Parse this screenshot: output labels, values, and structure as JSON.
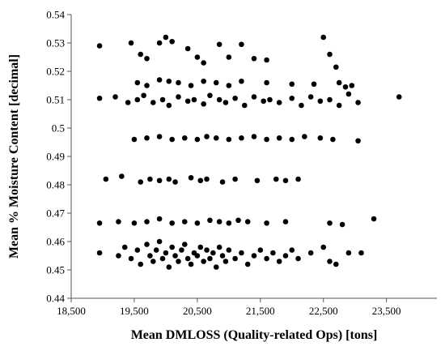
{
  "chart_data": {
    "type": "scatter",
    "xlabel": "Mean DMLOSS (Quality-related  Ops) [tons]",
    "ylabel": "Mean % Moisture Content [decimal]",
    "color": "#000000",
    "xlim": [
      18500,
      24300
    ],
    "ylim": [
      0.44,
      0.54
    ],
    "xticks": [
      {
        "value": 18500,
        "label": "18,500"
      },
      {
        "value": 19500,
        "label": "19,500"
      },
      {
        "value": 20500,
        "label": "20,500"
      },
      {
        "value": 21500,
        "label": "21,500"
      },
      {
        "value": 22500,
        "label": "22,500"
      },
      {
        "value": 23500,
        "label": "23,500"
      }
    ],
    "yticks": [
      0.44,
      0.45,
      0.46,
      0.47,
      0.48,
      0.49,
      0.5,
      0.51,
      0.52,
      0.53,
      0.54
    ],
    "x": [
      18950,
      19250,
      19350,
      19450,
      19550,
      19600,
      19700,
      19750,
      19800,
      19850,
      19900,
      19950,
      20000,
      20050,
      20100,
      20150,
      20200,
      20250,
      20300,
      20350,
      20400,
      20450,
      20500,
      20550,
      20600,
      20650,
      20700,
      20750,
      20800,
      20850,
      20900,
      20950,
      21000,
      21100,
      21200,
      21300,
      21400,
      21500,
      21600,
      21700,
      21800,
      21900,
      22000,
      22100,
      22300,
      22500,
      22600,
      22700,
      22900,
      23100,
      18950,
      19250,
      19500,
      19700,
      19900,
      20100,
      20300,
      20500,
      20700,
      20850,
      21000,
      21150,
      21300,
      21600,
      21900,
      22600,
      22800,
      23300,
      19050,
      19300,
      19600,
      19750,
      19900,
      20050,
      20150,
      20400,
      20550,
      20650,
      20900,
      21100,
      21450,
      21750,
      21900,
      22100,
      19500,
      19700,
      19900,
      20100,
      20300,
      20500,
      20650,
      20800,
      21000,
      21200,
      21400,
      21600,
      21800,
      22000,
      22200,
      22450,
      22650,
      23050,
      18950,
      19200,
      19400,
      19550,
      19650,
      19800,
      19950,
      20050,
      20200,
      20350,
      20450,
      20600,
      20700,
      20850,
      20950,
      21100,
      21250,
      21400,
      21550,
      21650,
      21800,
      22000,
      22150,
      22300,
      22450,
      22600,
      22750,
      22900,
      23050,
      23700,
      19550,
      19700,
      19900,
      20050,
      20200,
      20400,
      20600,
      20800,
      21000,
      21200,
      21600,
      22000,
      22350,
      22750,
      22850,
      22950,
      18950,
      19450,
      19600,
      19700,
      19900,
      20000,
      20100,
      20350,
      20500,
      20600,
      20850,
      21000,
      21200,
      21400,
      21600,
      22500,
      22600,
      22700
    ],
    "values": [
      0.456,
      0.455,
      0.458,
      0.454,
      0.457,
      0.452,
      0.459,
      0.455,
      0.453,
      0.457,
      0.46,
      0.454,
      0.456,
      0.451,
      0.458,
      0.455,
      0.453,
      0.457,
      0.459,
      0.454,
      0.452,
      0.456,
      0.455,
      0.458,
      0.453,
      0.457,
      0.454,
      0.456,
      0.451,
      0.458,
      0.455,
      0.453,
      0.457,
      0.454,
      0.456,
      0.452,
      0.455,
      0.457,
      0.454,
      0.456,
      0.453,
      0.455,
      0.457,
      0.454,
      0.456,
      0.458,
      0.453,
      0.452,
      0.456,
      0.456,
      0.4665,
      0.467,
      0.4665,
      0.467,
      0.468,
      0.4665,
      0.467,
      0.4665,
      0.4675,
      0.467,
      0.4665,
      0.4675,
      0.467,
      0.4665,
      0.467,
      0.4665,
      0.466,
      0.468,
      0.482,
      0.483,
      0.481,
      0.482,
      0.4815,
      0.482,
      0.481,
      0.4825,
      0.4815,
      0.482,
      0.481,
      0.482,
      0.4815,
      0.482,
      0.4815,
      0.482,
      0.496,
      0.4965,
      0.497,
      0.496,
      0.4965,
      0.496,
      0.497,
      0.4965,
      0.496,
      0.4965,
      0.497,
      0.496,
      0.4965,
      0.496,
      0.497,
      0.4965,
      0.496,
      0.4955,
      0.5105,
      0.511,
      0.509,
      0.51,
      0.5115,
      0.509,
      0.51,
      0.508,
      0.511,
      0.5095,
      0.51,
      0.5085,
      0.5115,
      0.51,
      0.509,
      0.5105,
      0.508,
      0.511,
      0.5095,
      0.51,
      0.509,
      0.5105,
      0.508,
      0.511,
      0.5095,
      0.51,
      0.508,
      0.512,
      0.509,
      0.511,
      0.516,
      0.515,
      0.517,
      0.5165,
      0.516,
      0.515,
      0.5165,
      0.516,
      0.515,
      0.5165,
      0.516,
      0.5155,
      0.5155,
      0.516,
      0.5145,
      0.515,
      0.529,
      0.53,
      0.526,
      0.5245,
      0.53,
      0.532,
      0.5305,
      0.528,
      0.525,
      0.523,
      0.5295,
      0.525,
      0.5295,
      0.5245,
      0.524,
      0.532,
      0.526,
      0.5215
    ]
  }
}
